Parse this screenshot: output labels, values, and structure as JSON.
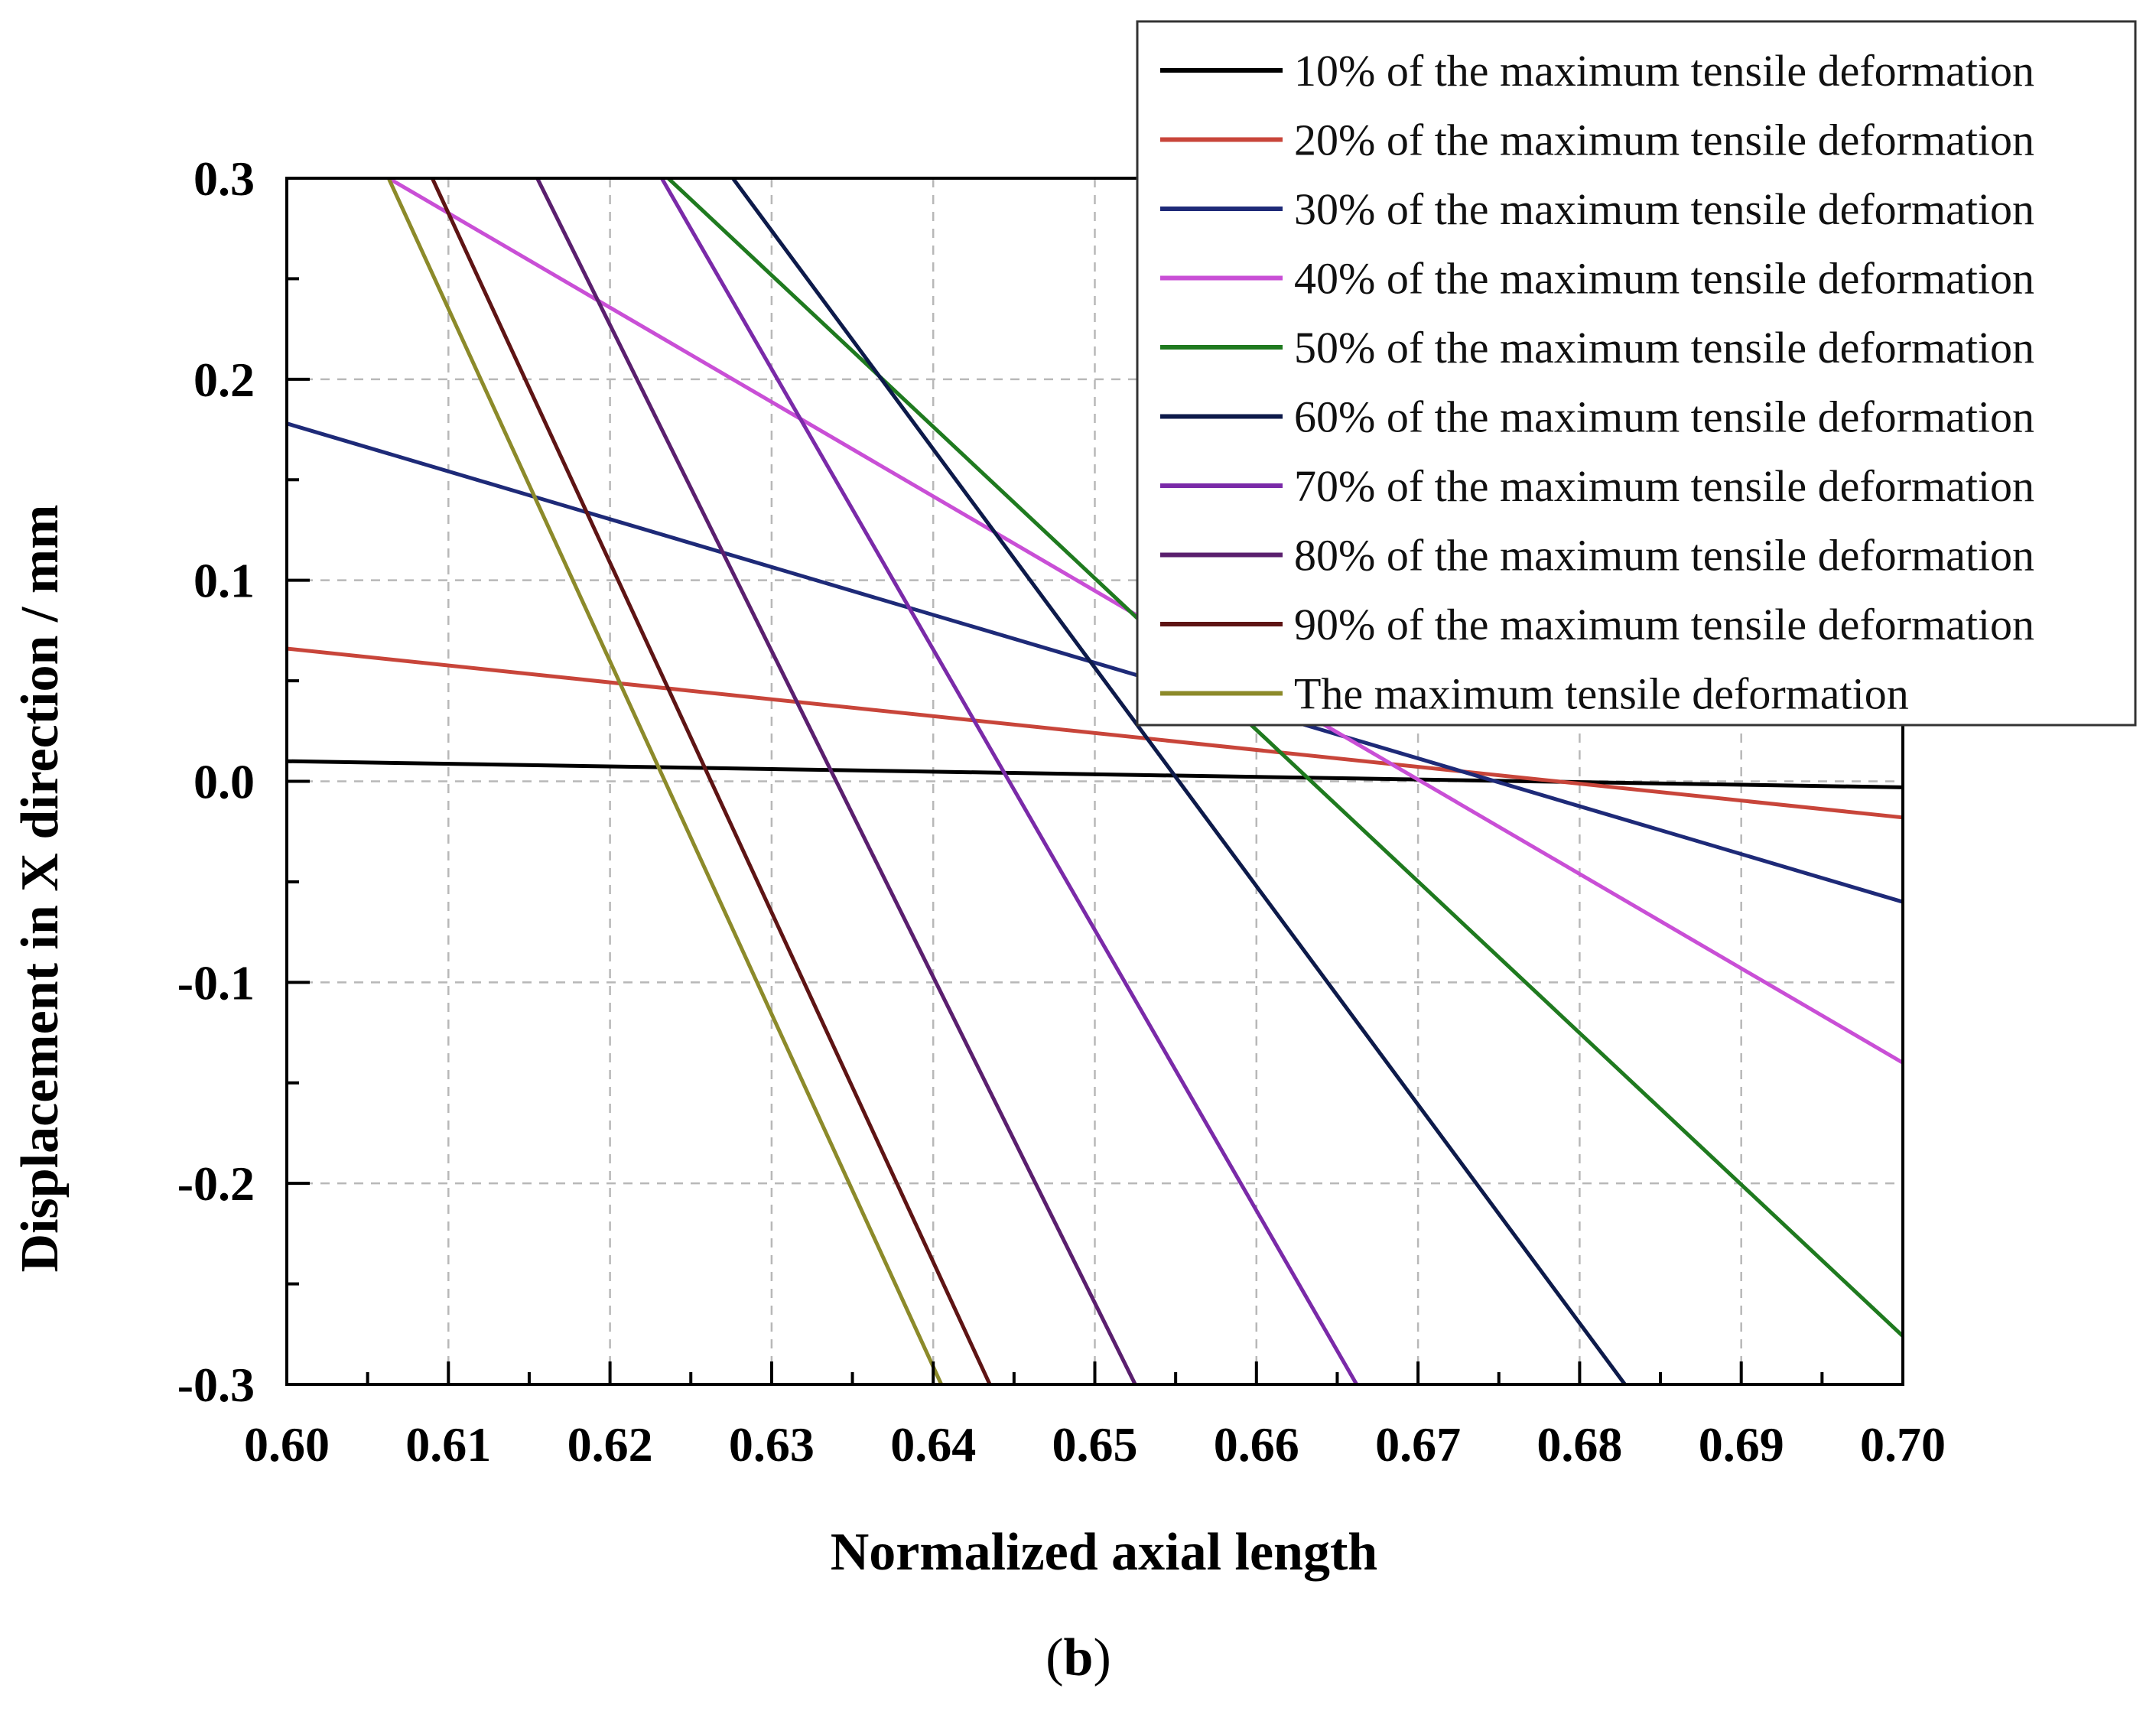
{
  "chart_data": {
    "type": "line",
    "xlabel": "Normalized axial length",
    "ylabel": "Displacement in X direction / mm",
    "xlim": [
      0.6,
      0.7
    ],
    "ylim": [
      -0.3,
      0.3
    ],
    "xticks": [
      "0.60",
      "0.61",
      "0.62",
      "0.63",
      "0.64",
      "0.65",
      "0.66",
      "0.67",
      "0.68",
      "0.69",
      "0.70"
    ],
    "yticks": [
      "-0.3",
      "-0.2",
      "-0.1",
      "0.0",
      "0.1",
      "0.2",
      "0.3"
    ],
    "grid": true,
    "legend_position": "top-right",
    "caption": "(b)",
    "series": [
      {
        "name": "10% of the maximum tensile deformation",
        "color": "#000000",
        "x": [
          0.6,
          0.7
        ],
        "y": [
          0.01,
          -0.003
        ]
      },
      {
        "name": "20% of the maximum tensile deformation",
        "color": "#c8453a",
        "x": [
          0.6,
          0.7
        ],
        "y": [
          0.066,
          -0.018
        ]
      },
      {
        "name": "30% of the maximum tensile deformation",
        "color": "#1e2a78",
        "x": [
          0.6,
          0.7
        ],
        "y": [
          0.178,
          -0.06
        ]
      },
      {
        "name": "40% of the maximum tensile deformation",
        "color": "#c94fd6",
        "x": [
          0.6063,
          0.7
        ],
        "y": [
          0.3,
          -0.14
        ]
      },
      {
        "name": "50% of the maximum tensile deformation",
        "color": "#1f7a1f",
        "x": [
          0.6236,
          0.7
        ],
        "y": [
          0.3,
          -0.276
        ]
      },
      {
        "name": "60% of the maximum tensile deformation",
        "color": "#0d1a4a",
        "x": [
          0.6276,
          0.6828
        ],
        "y": [
          0.3,
          -0.3
        ]
      },
      {
        "name": "70% of the maximum tensile deformation",
        "color": "#7a2aa8",
        "x": [
          0.6232,
          0.6662
        ],
        "y": [
          0.3,
          -0.3
        ]
      },
      {
        "name": "80% of the maximum tensile deformation",
        "color": "#5a1f6e",
        "x": [
          0.6155,
          0.6525
        ],
        "y": [
          0.3,
          -0.3
        ]
      },
      {
        "name": "90% of the maximum tensile deformation",
        "color": "#5e1414",
        "x": [
          0.609,
          0.6435
        ],
        "y": [
          0.3,
          -0.3
        ]
      },
      {
        "name": "The maximum tensile deformation",
        "color": "#8c8a2a",
        "x": [
          0.6063,
          0.6405
        ],
        "y": [
          0.3,
          -0.3
        ]
      }
    ]
  }
}
